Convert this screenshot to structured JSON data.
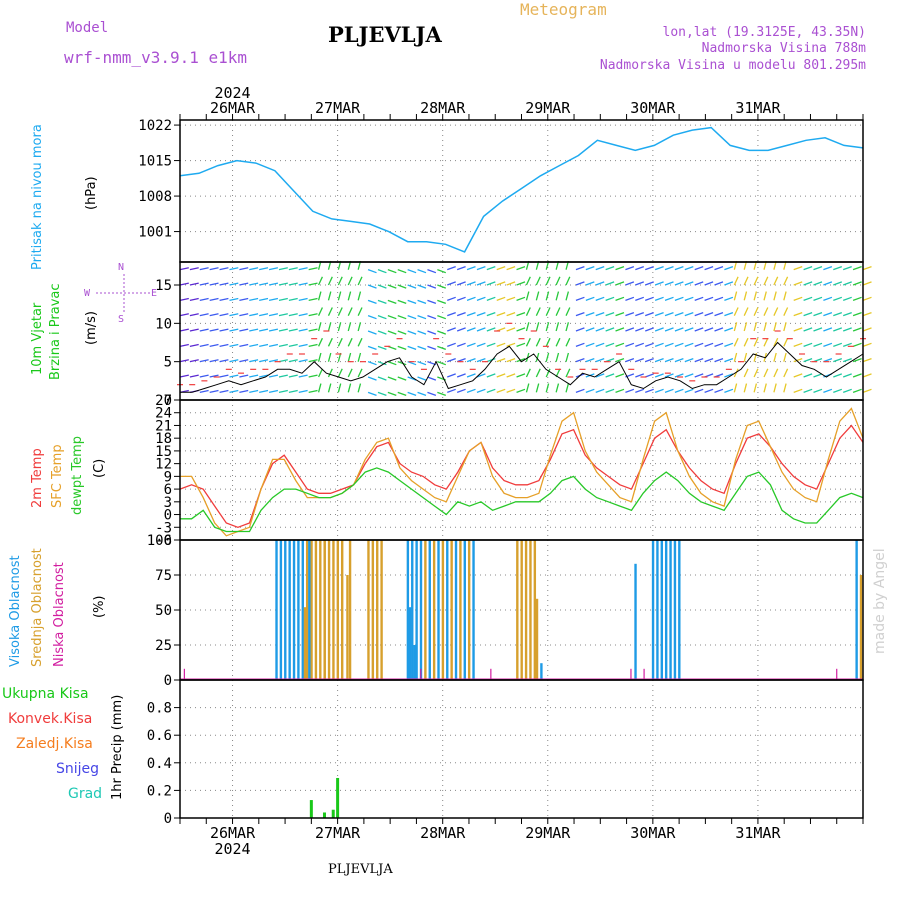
{
  "header": {
    "model_label": "Model",
    "model_name": "wrf-nmm_v3.9.1 e1km",
    "station_title": "PLJEVLJA",
    "product": "Meteogram",
    "lonlat": "lon,lat (19.3125E, 43.35N)",
    "elevation": "Nadmorska Visina 788m",
    "model_elevation": "Nadmorska Visina u modelu 801.295m",
    "watermark": "made by Angel",
    "footer_station": "PLJEVLJA"
  },
  "colors": {
    "pressure": "#1eaaf0",
    "temp2m": "#f03c3c",
    "sfc_temp": "#e6a028",
    "dewpt": "#28c828",
    "high_cloud": "#1e9be6",
    "mid_cloud": "#d7a02d",
    "low_cloud": "#d21ea0",
    "precip_total": "#19c819",
    "convective": "#f03c3c",
    "freezing": "#f57d1e",
    "snow": "#4646e6",
    "graupel": "#1ec8b4",
    "title_purple": "#aa50d2",
    "wind_label_green": "#19c819",
    "gust": "#f03c3c",
    "wind_speed_line": "#000000"
  },
  "chart_data": [
    {
      "type": "line",
      "panel": "pressure",
      "ylabel_left": "Pritisak na nivou mora",
      "unit": "(hPa)",
      "yticks": [
        1001,
        1008,
        1015,
        1022
      ],
      "ylim": [
        995,
        1023
      ],
      "x_hours": [
        0,
        6,
        12,
        18,
        24,
        30,
        36,
        42,
        48,
        54,
        60,
        66,
        72,
        78,
        84,
        90,
        96,
        102,
        108,
        114,
        120,
        126,
        132,
        138,
        144,
        150,
        156
      ],
      "series": [
        {
          "values": [
            1012,
            1012.5,
            1014,
            1015,
            1014.5,
            1013,
            1009,
            1005,
            1003.5,
            1003,
            1002.5,
            1001,
            999,
            999,
            998.5,
            997,
            1004,
            1007,
            1009.5,
            1012,
            1014,
            1016,
            1019,
            1018,
            1017,
            1018,
            1020
          ]
        }
      ],
      "series_tail": [
        1021,
        1021.5,
        1018,
        1017,
        1017,
        1018,
        1019,
        1019.5,
        1018,
        1017.5
      ]
    },
    {
      "type": "line",
      "panel": "wind",
      "ylabel_left": [
        "10m Vjetar",
        "Brzina i Pravac"
      ],
      "unit": "(m/s)",
      "compass": {
        "n": "N",
        "w": "W",
        "e": "E",
        "s": "S"
      },
      "yticks": [
        0,
        5,
        10,
        15
      ],
      "ylim": [
        0,
        18
      ],
      "series": [
        {
          "values": [
            1,
            1,
            1.5,
            2,
            2.5,
            2,
            2.5,
            3,
            4,
            4,
            3.5,
            5,
            3.5,
            3,
            2.5,
            3,
            4,
            5,
            5.5,
            3,
            2,
            5,
            1.5,
            2,
            2.5,
            4,
            6,
            7,
            5,
            6,
            4,
            3,
            2,
            3.5,
            3,
            4,
            5,
            2,
            1.5,
            2.5,
            3,
            2.5,
            1.5,
            2,
            2,
            3,
            4,
            6,
            5.5,
            7.5,
            6,
            4.5,
            4,
            3,
            4,
            5,
            6
          ]
        }
      ],
      "gust": [
        2,
        2,
        2.5,
        3,
        4,
        3.5,
        4,
        4,
        5,
        6,
        6,
        8,
        9,
        6,
        5,
        5,
        6,
        7,
        8,
        5,
        4,
        8,
        6,
        5,
        4,
        5,
        9,
        10,
        8,
        9,
        7,
        4,
        3,
        4,
        4,
        5,
        6,
        4,
        3,
        3.5,
        3.5,
        3,
        2.5,
        3,
        3,
        4,
        5,
        8,
        8,
        9,
        8,
        6,
        5,
        5,
        6,
        7,
        8
      ]
    },
    {
      "type": "line",
      "panel": "temperature",
      "ylabel_left": [
        "2m Temp",
        "SFC Temp",
        "dewpt Temp"
      ],
      "unit": "(C)",
      "yticks": [
        -6,
        -3,
        0,
        3,
        6,
        9,
        12,
        15,
        18,
        21,
        24,
        27
      ],
      "ylim": [
        -6,
        27
      ],
      "series": [
        {
          "name": "2m Temp",
          "values": [
            6,
            7,
            6,
            2,
            -2,
            -3,
            -2,
            6,
            12,
            14,
            10,
            6,
            5,
            5,
            6,
            7,
            12,
            16,
            17,
            12,
            10,
            9,
            7,
            6,
            10,
            15,
            17,
            11,
            8,
            7,
            7,
            8,
            13,
            19,
            20,
            14,
            11,
            9,
            7,
            6,
            12,
            18,
            20,
            15,
            11,
            8,
            6,
            5,
            12,
            18,
            19,
            16,
            12,
            9,
            7,
            6,
            12,
            18,
            21,
            17
          ]
        },
        {
          "name": "SFC Temp",
          "values": [
            9,
            9,
            4,
            -2,
            -5,
            -4,
            -3,
            6,
            13,
            13,
            8,
            4,
            4,
            4,
            5,
            7,
            13,
            17,
            18,
            11,
            8,
            6,
            4,
            3,
            9,
            15,
            17,
            9,
            5,
            4,
            4,
            5,
            14,
            22,
            24,
            15,
            10,
            7,
            4,
            3,
            13,
            22,
            24,
            15,
            9,
            5,
            3,
            2,
            13,
            21,
            22,
            16,
            10,
            6,
            4,
            3,
            13,
            22,
            25,
            18
          ]
        },
        {
          "name": "dewpt Temp",
          "values": [
            -1,
            -1,
            1,
            -3,
            -4,
            -4,
            -4,
            1,
            4,
            6,
            6,
            5,
            4,
            4,
            5,
            7,
            10,
            11,
            10,
            8,
            6,
            4,
            2,
            0,
            3,
            2,
            3,
            1,
            2,
            3,
            3,
            3,
            5,
            8,
            9,
            6,
            4,
            3,
            2,
            1,
            5,
            8,
            10,
            8,
            5,
            3,
            2,
            1,
            5,
            9,
            10,
            7,
            1,
            -1,
            -2,
            -2,
            1,
            4,
            5,
            4
          ]
        }
      ]
    },
    {
      "type": "bar",
      "panel": "cloud",
      "ylabel_left": [
        "Visoka Oblacnost",
        "Srednja Oblacnost",
        "Niska Oblacnost"
      ],
      "unit": "(%)",
      "yticks": [
        0,
        25,
        50,
        75,
        100
      ],
      "ylim": [
        0,
        100
      ]
    },
    {
      "type": "bar",
      "panel": "precip",
      "legend": [
        "Ukupna Kisa",
        "Konvek.Kisa",
        "Zaledj.Kisa",
        "Snijeg",
        "Grad"
      ],
      "ylabel": "1hr Precip (mm)",
      "yticks": [
        0,
        0.2,
        0.4,
        0.6,
        0.8
      ],
      "ylim": [
        0,
        1.0
      ],
      "bars": [
        {
          "hour": 30,
          "value": 0.13
        },
        {
          "hour": 33,
          "value": 0.04
        },
        {
          "hour": 35,
          "value": 0.06
        },
        {
          "hour": 36,
          "value": 0.29
        }
      ]
    }
  ],
  "time_axis": {
    "year": "2024",
    "days": [
      "26MAR",
      "27MAR",
      "28MAR",
      "29MAR",
      "30MAR",
      "31MAR"
    ]
  }
}
